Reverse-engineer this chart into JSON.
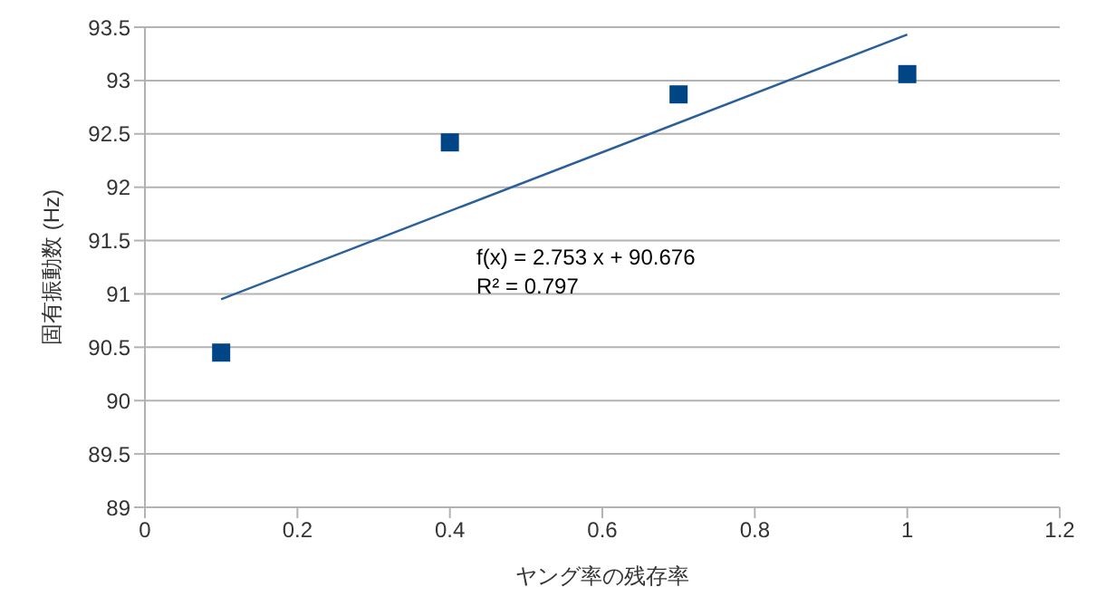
{
  "chart_data": {
    "type": "scatter",
    "xlabel": "ヤング率の残存率",
    "ylabel": "固有振動数 (Hz)",
    "xlim": [
      0,
      1.2
    ],
    "xticks": [
      0,
      0.2,
      0.4,
      0.6,
      0.8,
      1,
      1.2
    ],
    "ylim": [
      89,
      93.5
    ],
    "yticks": [
      89,
      89.5,
      90,
      90.5,
      91,
      91.5,
      92,
      92.5,
      93,
      93.5
    ],
    "grid": "y",
    "series": [
      {
        "color": "#004586",
        "marker": "square",
        "x": [
          0.1,
          0.4,
          0.7,
          1
        ],
        "values": [
          90.45,
          92.42,
          92.87,
          93.06
        ]
      },
      {
        "type": "line",
        "marker": "none",
        "color": "#2a6099",
        "x": [
          0.1,
          1
        ],
        "values": [
          90.95,
          93.43
        ]
      }
    ],
    "annotations": [
      "f(x) = 2.753 x + 90.676",
      "R² = 0.797"
    ]
  }
}
